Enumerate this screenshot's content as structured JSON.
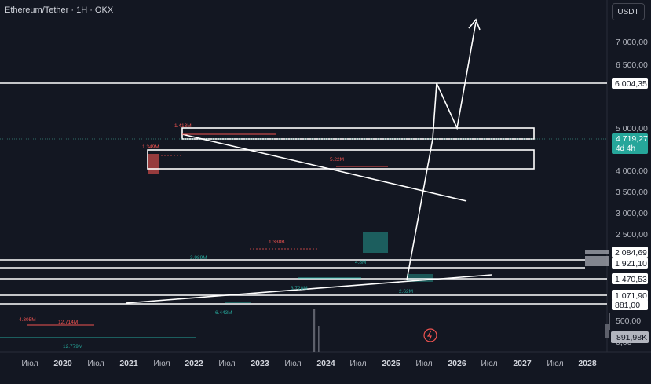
{
  "header": {
    "title": "Ethereum/Tether · 1H · OKX",
    "currency_button": "USDT"
  },
  "chart_data": {
    "type": "candlestick",
    "symbol": "Ethereum/Tether",
    "interval": "1H",
    "exchange": "OKX",
    "y_axis": {
      "scale": "log",
      "ticks": [
        7000,
        6500,
        5000,
        4000,
        3500,
        3000,
        2500,
        500,
        0
      ],
      "tick_labels": [
        "7 000,00",
        "6 500,00",
        "5 000,00",
        "4 000,00",
        "3 500,00",
        "3 000,00",
        "2 500,00",
        "500,00",
        "0,00"
      ]
    },
    "x_axis": {
      "labels": [
        "Июл",
        "2020",
        "Июл",
        "2021",
        "Июл",
        "2022",
        "Июл",
        "2023",
        "Июл",
        "2024",
        "Июл",
        "2025",
        "Июл",
        "2026",
        "Июл",
        "2027",
        "Июл",
        "2028"
      ],
      "bold_labels": [
        "2020",
        "2021",
        "2022",
        "2023",
        "2024",
        "2025",
        "2026",
        "2027",
        "2028"
      ]
    },
    "price_labels": [
      {
        "text": "6 004,35",
        "value": 6004.35
      },
      {
        "text": "4 719,27",
        "subtext": "4d 4h",
        "value": 4719.27,
        "current": true
      },
      {
        "text": "2 084,69",
        "value": 2084.69
      },
      {
        "text": "1 921,10",
        "value": 1921.1
      },
      {
        "text": "1 470,53",
        "value": 1470.53
      },
      {
        "text": "1 071,90",
        "value": 1071.9
      },
      {
        "text": "881,00",
        "value": 881.0
      }
    ],
    "volume_label": "891,98K",
    "annotations": [
      "4.305M",
      "12.714M",
      "12.779M",
      "1.413M",
      "1.349M",
      "3.989M",
      "6.443M",
      "1.338B",
      "3.728M",
      "5.22M",
      "4.8M",
      "2.62M"
    ],
    "colors": {
      "background": "#131722",
      "up": "#26a69a",
      "down": "#ef5350",
      "lines": "#ffffff",
      "text": "#b2b5be"
    }
  }
}
